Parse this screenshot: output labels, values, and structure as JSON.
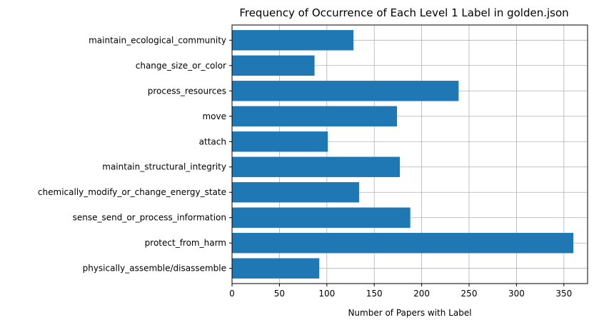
{
  "chart_data": {
    "type": "bar",
    "orientation": "horizontal",
    "title": "Frequency of Occurrence of Each Level 1 Label in golden.json",
    "xlabel": "Number of Papers with Label",
    "ylabel": "",
    "xlim": [
      0,
      375
    ],
    "xticks": [
      0,
      50,
      100,
      150,
      200,
      250,
      300,
      350
    ],
    "grid": true,
    "bar_color": "#1f77b4",
    "categories": [
      "maintain_ecological_community",
      "change_size_or_color",
      "process_resources",
      "move",
      "attach",
      "maintain_structural_integrity",
      "chemically_modify_or_change_energy_state",
      "sense_send_or_process_information",
      "protect_from_harm",
      "physically_assemble/disassemble"
    ],
    "values": [
      128,
      87,
      239,
      174,
      101,
      177,
      134,
      188,
      360,
      92
    ]
  }
}
